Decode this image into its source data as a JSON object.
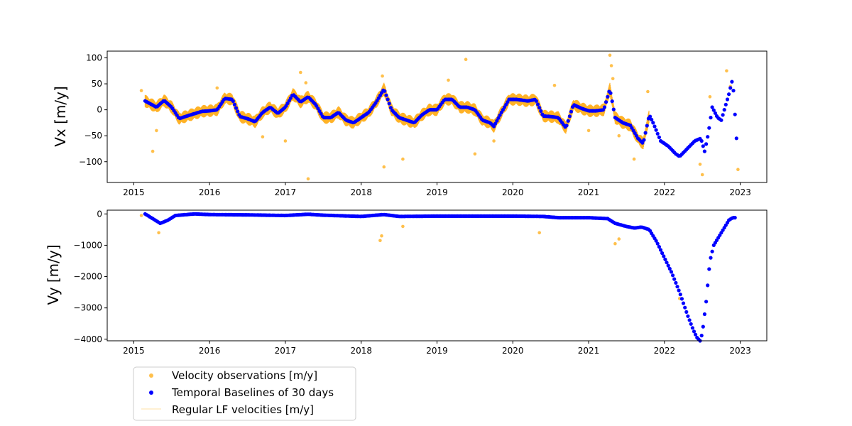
{
  "chart_data": [
    {
      "type": "scatter",
      "panel": "top",
      "ylabel": "Vx [m/y]",
      "xlim": [
        2014.65,
        2023.35
      ],
      "ylim": [
        -140,
        113
      ],
      "xticks": [
        2015,
        2016,
        2017,
        2018,
        2019,
        2020,
        2021,
        2022,
        2023
      ],
      "xtick_labels": [
        "2015",
        "2016",
        "2017",
        "2018",
        "2019",
        "2020",
        "2021",
        "2022",
        "2023"
      ],
      "yticks": [
        100,
        50,
        0,
        -50,
        -100
      ],
      "ytick_labels": [
        "100",
        "50",
        "0",
        "−50",
        "−100"
      ],
      "series": [
        {
          "name": "Temporal Baselines of 30 days",
          "color": "#0000ff",
          "x": [
            2015.15,
            2015.3,
            2015.4,
            2015.5,
            2015.6,
            2015.7,
            2015.9,
            2016.0,
            2016.1,
            2016.2,
            2016.3,
            2016.4,
            2016.5,
            2016.6,
            2016.7,
            2016.8,
            2016.9,
            2017.0,
            2017.1,
            2017.2,
            2017.3,
            2017.4,
            2017.5,
            2017.6,
            2017.7,
            2017.8,
            2017.9,
            2018.0,
            2018.1,
            2018.2,
            2018.3,
            2018.4,
            2018.5,
            2018.6,
            2018.7,
            2018.8,
            2018.9,
            2019.0,
            2019.1,
            2019.2,
            2019.3,
            2019.4,
            2019.5,
            2019.6,
            2019.7,
            2019.75,
            2019.85,
            2019.95,
            2020.05,
            2020.2,
            2020.3,
            2020.4,
            2020.5,
            2020.6,
            2020.7,
            2020.8,
            2020.9,
            2021.0,
            2021.1,
            2021.2,
            2021.28,
            2021.35,
            2021.45,
            2021.55,
            2021.65,
            2021.72,
            2021.8,
            2021.85,
            2021.95,
            2022.05,
            2022.15,
            2022.2,
            2022.3,
            2022.4,
            2022.48,
            2022.53,
            2022.58,
            2022.63,
            2022.7,
            2022.75,
            2022.8,
            2022.85,
            2022.9,
            2022.95
          ],
          "values": [
            17,
            5,
            18,
            5,
            -17,
            -12,
            -3,
            -2,
            0,
            22,
            20,
            -13,
            -17,
            -23,
            -5,
            5,
            -7,
            5,
            30,
            15,
            25,
            10,
            -15,
            -15,
            -5,
            -20,
            -25,
            -15,
            -5,
            15,
            40,
            0,
            -15,
            -20,
            -25,
            -10,
            0,
            0,
            20,
            20,
            5,
            5,
            0,
            -20,
            -25,
            -32,
            -5,
            20,
            20,
            17,
            20,
            -12,
            -13,
            -15,
            -35,
            10,
            3,
            -2,
            -2,
            0,
            40,
            -15,
            -25,
            -30,
            -55,
            -65,
            -10,
            -25,
            -60,
            -70,
            -85,
            -90,
            -75,
            -60,
            -55,
            -80,
            -45,
            5,
            -15,
            -20,
            5,
            30,
            60,
            -55
          ]
        },
        {
          "name": "Velocity observations [m/y]",
          "color": "#ffa500",
          "x": [
            2015.1,
            2015.25,
            2015.3,
            2016.1,
            2016.7,
            2017.0,
            2017.2,
            2017.27,
            2017.3,
            2018.28,
            2018.3,
            2018.55,
            2019.15,
            2019.38,
            2019.5,
            2019.75,
            2020.55,
            2021.0,
            2021.28,
            2021.3,
            2021.32,
            2021.4,
            2021.6,
            2021.78,
            2022.47,
            2022.5,
            2022.6,
            2022.82,
            2022.87,
            2022.97
          ],
          "values": [
            37,
            -80,
            -40,
            42,
            -52,
            -60,
            72,
            52,
            -133,
            65,
            -110,
            -95,
            57,
            97,
            -85,
            -60,
            47,
            -40,
            105,
            85,
            60,
            -50,
            -95,
            35,
            -105,
            -125,
            25,
            75,
            45,
            -115
          ]
        },
        {
          "name": "Regular LF velocities [m/y]",
          "color": "#ffa500"
        }
      ]
    },
    {
      "type": "scatter",
      "panel": "bottom",
      "ylabel": "Vy [m/y]",
      "xlim": [
        2014.65,
        2023.35
      ],
      "ylim": [
        -4050,
        120
      ],
      "xticks": [
        2015,
        2016,
        2017,
        2018,
        2019,
        2020,
        2021,
        2022,
        2023
      ],
      "xtick_labels": [
        "2015",
        "2016",
        "2017",
        "2018",
        "2019",
        "2020",
        "2021",
        "2022",
        "2023"
      ],
      "yticks": [
        0,
        -1000,
        -2000,
        -3000,
        -4000
      ],
      "ytick_labels": [
        "0",
        "−1000",
        "−2000",
        "−3000",
        "−4000"
      ],
      "series": [
        {
          "name": "Temporal Baselines of 30 days",
          "color": "#0000ff",
          "x": [
            2015.15,
            2015.25,
            2015.35,
            2015.45,
            2015.55,
            2015.8,
            2016.0,
            2016.5,
            2017.0,
            2017.3,
            2017.5,
            2018.0,
            2018.3,
            2018.5,
            2019.0,
            2019.5,
            2020.0,
            2020.4,
            2020.6,
            2021.0,
            2021.25,
            2021.35,
            2021.5,
            2021.6,
            2021.7,
            2021.8,
            2021.9,
            2022.0,
            2022.1,
            2022.2,
            2022.3,
            2022.38,
            2022.43,
            2022.47,
            2022.5,
            2022.55,
            2022.6,
            2022.65,
            2022.7,
            2022.75,
            2022.8,
            2022.85,
            2022.9,
            2022.93
          ],
          "values": [
            0,
            -150,
            -300,
            -200,
            -50,
            0,
            -20,
            -30,
            -50,
            -10,
            -40,
            -80,
            -20,
            -80,
            -70,
            -70,
            -70,
            -80,
            -120,
            -120,
            -150,
            -300,
            -400,
            -450,
            -420,
            -500,
            -900,
            -1400,
            -1900,
            -2500,
            -3200,
            -3700,
            -3950,
            -4050,
            -3800,
            -2800,
            -1500,
            -1000,
            -800,
            -600,
            -400,
            -200,
            -120,
            -120
          ]
        },
        {
          "name": "Velocity observations [m/y]",
          "color": "#ffa500",
          "x": [
            2015.1,
            2015.33,
            2018.25,
            2018.27,
            2018.55,
            2020.35,
            2021.35,
            2022.2,
            2021.4
          ],
          "values": [
            -50,
            -600,
            -850,
            -700,
            -400,
            -600,
            -950,
            -2700,
            -800
          ]
        },
        {
          "name": "Regular LF velocities [m/y]",
          "color": "#ffa500"
        }
      ]
    }
  ],
  "legend": {
    "placement": "below-left",
    "entries": [
      {
        "label": "Velocity observations [m/y]",
        "color": "#ffa500",
        "marker": "dot-light"
      },
      {
        "label": "Temporal Baselines of 30 days",
        "color": "#0000ff",
        "marker": "dot"
      },
      {
        "label": "Regular LF velocities [m/y]",
        "color": "#ffa500",
        "marker": "line"
      }
    ]
  }
}
